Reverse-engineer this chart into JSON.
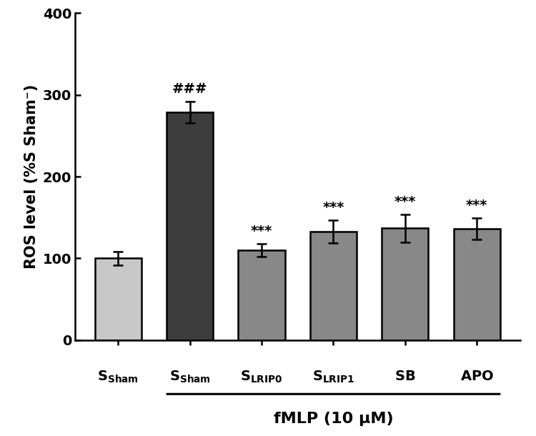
{
  "categories": [
    "S_Sham",
    "S_Sham_fMLP",
    "S_LRIP0",
    "S_LRIP1",
    "SB",
    "APO"
  ],
  "values": [
    100,
    279,
    110,
    133,
    137,
    136
  ],
  "errors": [
    8,
    13,
    8,
    14,
    17,
    13
  ],
  "bar_colors": [
    "#c8c8c8",
    "#3d3d3d",
    "#888888",
    "#888888",
    "#888888",
    "#888888"
  ],
  "bar_edge_colors": [
    "#000000",
    "#000000",
    "#000000",
    "#000000",
    "#000000",
    "#000000"
  ],
  "ylabel": "ROS level (%S Sham⁻)",
  "xlabel_main": "fMLP (10 μM)",
  "ylim": [
    0,
    400
  ],
  "yticks": [
    0,
    100,
    200,
    300,
    400
  ],
  "tick_labels": [
    "0",
    "100",
    "200",
    "300",
    "400"
  ],
  "annotation_hash": "###",
  "annotation_stars": "***",
  "hash_indices": [
    1
  ],
  "star_indices": [
    2,
    3,
    4,
    5
  ],
  "figsize": [
    7.5,
    6.1
  ],
  "dpi": 100,
  "bar_width": 0.65,
  "linewidth": 1.8,
  "tick_label_fontsize": 14,
  "axis_label_fontsize": 15,
  "annotation_fontsize": 14,
  "xlabel_fontsize": 16,
  "capsize": 5
}
